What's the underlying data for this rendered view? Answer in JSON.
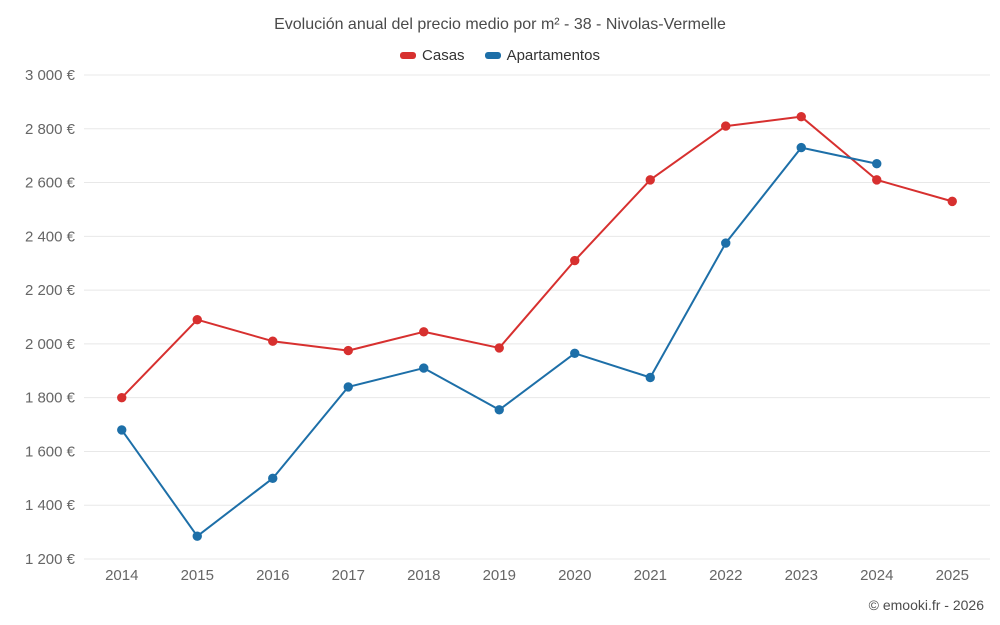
{
  "chart": {
    "title": "Evolución anual del precio medio por m² - 38 - Nivolas-Vermelle",
    "footer": "© emooki.fr - 2026"
  },
  "chart_data": {
    "type": "line",
    "categories": [
      "2014",
      "2015",
      "2016",
      "2017",
      "2018",
      "2019",
      "2020",
      "2021",
      "2022",
      "2023",
      "2024",
      "2025"
    ],
    "series": [
      {
        "name": "Casas",
        "color": "#d7302f",
        "values": [
          1800,
          2090,
          2010,
          1975,
          2045,
          1985,
          2310,
          2610,
          2810,
          2845,
          2610,
          2530
        ]
      },
      {
        "name": "Apartamentos",
        "color": "#1d6fa8",
        "values": [
          1680,
          1285,
          1500,
          1840,
          1910,
          1755,
          1965,
          1875,
          2375,
          2730,
          2670,
          null
        ]
      }
    ],
    "ylim": [
      1200,
      3000
    ],
    "ytick_step": 200,
    "ytick_suffix": " €",
    "grid": true,
    "gridline_color": "#e8e8e8",
    "tick_label_color": "#666666",
    "legend_position": "top"
  }
}
